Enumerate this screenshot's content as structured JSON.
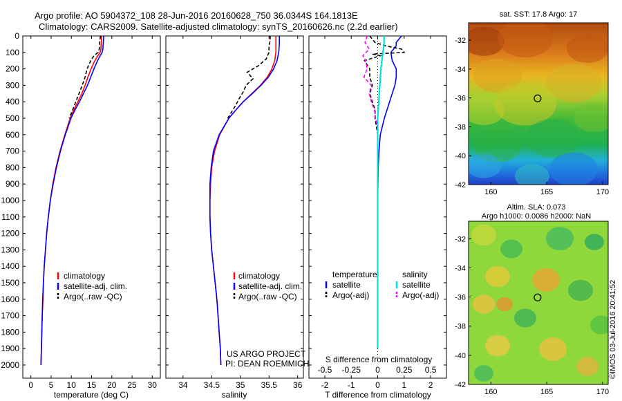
{
  "header": {
    "line1": "Argo profile: AO 5904372_108 28-Jun-2016 20160628_750 36.0344S 164.1813E",
    "line2": "Climatology: CARS2009. Satellite-adjusted climatology: synTS_20160626.nc (2.2d earlier)"
  },
  "colors": {
    "climatology": "#ff0000",
    "satellite": "#0000ff",
    "argo": "#000000",
    "salinity_satellite": "#00e0e0",
    "salinity_argo": "#ff00ff"
  },
  "depth_axis": {
    "ticks": [
      "0",
      "100",
      "200",
      "300",
      "400",
      "500",
      "600",
      "700",
      "800",
      "900",
      "1000",
      "1100",
      "1200",
      "1300",
      "1400",
      "1500",
      "1600",
      "1700",
      "1800",
      "1900",
      "2000"
    ],
    "ylim": [
      0,
      2080
    ]
  },
  "chart_data": [
    {
      "type": "line",
      "xlabel": "temperature (deg C)",
      "xlim": [
        -2,
        32
      ],
      "xticks": [
        "0",
        "5",
        "10",
        "15",
        "20",
        "25",
        "30"
      ],
      "xtick_values": [
        0,
        5,
        10,
        15,
        20,
        25,
        30
      ],
      "legend": [
        "climatology",
        "satellite-adj. clim.",
        "Argo(..raw -QC)"
      ],
      "depth": [
        0,
        40,
        80,
        100,
        130,
        160,
        200,
        250,
        300,
        350,
        400,
        450,
        500,
        600,
        700,
        800,
        900,
        1000,
        1100,
        1200,
        1300,
        1400,
        1500,
        1600,
        1700,
        1800,
        1900,
        2000
      ],
      "series": [
        {
          "name": "climatology",
          "color_key": "climatology",
          "values": [
            17.5,
            17.4,
            17.3,
            17.1,
            16.3,
            15.6,
            14.9,
            14.1,
            13.4,
            12.6,
            11.6,
            10.6,
            9.7,
            8.4,
            7.2,
            6.2,
            5.4,
            4.8,
            4.3,
            3.9,
            3.6,
            3.3,
            3.1,
            3.0,
            2.8,
            2.7,
            2.6,
            2.5
          ]
        },
        {
          "name": "satellite-adj. clim.",
          "color_key": "satellite",
          "values": [
            18.0,
            17.9,
            17.8,
            17.6,
            16.9,
            16.3,
            15.6,
            14.8,
            14.0,
            13.0,
            12.0,
            10.9,
            9.9,
            8.5,
            7.3,
            6.3,
            5.5,
            4.8,
            4.3,
            3.9,
            3.6,
            3.3,
            3.1,
            2.9,
            2.8,
            2.7,
            2.6,
            2.5
          ]
        },
        {
          "name": "Argo(..raw -QC)",
          "color_key": "argo",
          "depth": [
            0,
            20,
            40,
            60,
            80,
            100,
            120,
            150,
            200,
            250,
            300,
            350,
            400,
            450,
            500
          ],
          "values": [
            17.2,
            17.1,
            17.0,
            17.0,
            16.9,
            16.6,
            15.6,
            14.8,
            13.9,
            13.4,
            12.7,
            11.9,
            11.1,
            10.3,
            9.5
          ]
        }
      ]
    },
    {
      "type": "line",
      "xlabel": "salinity",
      "xlim": [
        33.7,
        36.1
      ],
      "xticks": [
        "34",
        "34.5",
        "35",
        "35.5",
        "36"
      ],
      "xtick_values": [
        34,
        34.5,
        35,
        35.5,
        36
      ],
      "legend": [
        "climatology",
        "satellite-adj. clim.",
        "Argo(..raw -QC)"
      ],
      "annotation": [
        "US ARGO PROJECT",
        "PI: DEAN ROEMMICH"
      ],
      "depth": [
        0,
        50,
        100,
        150,
        200,
        250,
        300,
        350,
        400,
        450,
        500,
        600,
        700,
        800,
        900,
        1000,
        1100,
        1200,
        1300,
        1400,
        1500,
        1600,
        1700,
        1800,
        1900,
        2000
      ],
      "series": [
        {
          "name": "climatology",
          "color_key": "climatology",
          "values": [
            35.62,
            35.62,
            35.62,
            35.6,
            35.55,
            35.47,
            35.35,
            35.2,
            35.05,
            34.92,
            34.8,
            34.64,
            34.55,
            34.5,
            34.48,
            34.47,
            34.47,
            34.48,
            34.5,
            34.53,
            34.56,
            34.59,
            34.61,
            34.63,
            34.65,
            34.66
          ]
        },
        {
          "name": "satellite-adj. clim.",
          "color_key": "satellite",
          "values": [
            35.68,
            35.68,
            35.67,
            35.64,
            35.58,
            35.49,
            35.36,
            35.21,
            35.05,
            34.92,
            34.8,
            34.63,
            34.53,
            34.49,
            34.47,
            34.47,
            34.47,
            34.48,
            34.5,
            34.53,
            34.56,
            34.59,
            34.61,
            34.63,
            34.65,
            34.66
          ]
        },
        {
          "name": "Argo(..raw -QC)",
          "color_key": "argo",
          "depth": [
            0,
            30,
            60,
            100,
            140,
            180,
            220,
            260,
            300,
            340,
            380,
            420,
            460,
            500
          ],
          "values": [
            35.52,
            35.52,
            35.5,
            35.5,
            35.45,
            35.32,
            35.12,
            35.22,
            35.1,
            35.05,
            34.98,
            34.92,
            34.85,
            34.78
          ]
        }
      ]
    },
    {
      "type": "line",
      "legend_titles": [
        "temperature",
        "salinity"
      ],
      "legend": [
        "satellite",
        "Argo(-adj)",
        "satellite",
        "Argo(-adj)"
      ],
      "xlabel_top": "S difference from climatology",
      "xlabel": "T difference from climatology",
      "xlim_T": [
        -2.6,
        2.6
      ],
      "xticks_T": [
        "-2",
        "-1",
        "0",
        "1",
        "2"
      ],
      "xtick_values_T": [
        -2,
        -1,
        0,
        1,
        2
      ],
      "xticks_S": [
        "-0.5",
        "-0.25",
        "0",
        "0.25",
        "0.5"
      ],
      "xtick_values_S": [
        -0.5,
        -0.25,
        0,
        0.25,
        0.5
      ],
      "series": [
        {
          "name": "temperature satellite",
          "color_key": "satellite",
          "axis": "T",
          "depth": [
            0,
            20,
            40,
            60,
            80,
            100,
            150,
            200,
            250,
            300,
            350,
            400,
            500,
            600,
            700,
            800,
            1000,
            1200,
            1400,
            1600,
            1800,
            1900
          ],
          "values": [
            0.9,
            0.8,
            0.7,
            0.7,
            0.6,
            0.5,
            0.55,
            0.7,
            0.7,
            0.65,
            0.55,
            0.45,
            0.25,
            0.1,
            0.05,
            0.02,
            0.0,
            0.0,
            0.0,
            0.0,
            0.0,
            0.0
          ]
        },
        {
          "name": "temperature Argo(-adj)",
          "color_key": "argo",
          "axis": "T",
          "depth": [
            0,
            20,
            40,
            60,
            80,
            100,
            110,
            120,
            150,
            200,
            250,
            300,
            350,
            400,
            450,
            500,
            600,
            700,
            800,
            1000,
            1200,
            1400,
            1600,
            1800,
            1900
          ],
          "values": [
            -0.3,
            -0.2,
            -0.1,
            0.3,
            0.9,
            1.0,
            -0.2,
            0.1,
            -0.5,
            -0.3,
            -0.3,
            -0.2,
            -0.3,
            -0.2,
            -0.1,
            -0.1,
            0.0,
            0.0,
            0.0,
            0.0,
            0.0,
            0.0,
            0.0,
            0.0,
            0.0
          ]
        },
        {
          "name": "salinity satellite",
          "color_key": "salinity_satellite",
          "axis": "S",
          "depth": [
            0,
            50,
            100,
            150,
            200,
            300,
            400,
            500,
            600,
            800,
            1000,
            1200,
            1400,
            1600,
            1800,
            1900
          ],
          "values": [
            0.06,
            0.06,
            0.05,
            0.04,
            0.03,
            0.02,
            0.01,
            0.0,
            0.0,
            0.0,
            0.0,
            0.0,
            0.0,
            0.0,
            0.0,
            0.0
          ]
        },
        {
          "name": "salinity Argo(-adj)",
          "color_key": "salinity_argo",
          "axis": "S",
          "depth": [
            0,
            40,
            80,
            120,
            160,
            200,
            250,
            300,
            350,
            400,
            450,
            500,
            550
          ],
          "values": [
            -0.1,
            -0.12,
            -0.08,
            -0.14,
            -0.11,
            -0.1,
            -0.13,
            -0.06,
            -0.08,
            -0.06,
            -0.03,
            -0.02,
            0.0
          ]
        }
      ]
    }
  ],
  "map_sst": {
    "title": "sat. SST: 17.8 Argo: 17",
    "yticks": [
      "-32",
      "-34",
      "-36",
      "-38",
      "-40",
      "-42"
    ],
    "ytick_values": [
      -32,
      -34,
      -36,
      -38,
      -40,
      -42
    ],
    "xticks": [
      "160",
      "165",
      "170"
    ],
    "xtick_values": [
      160,
      165,
      170
    ],
    "lon_range": [
      158,
      170.5
    ],
    "lat_range": [
      -42,
      -30.8
    ],
    "marker": {
      "lon": 164.18,
      "lat": -36.03
    }
  },
  "map_sla": {
    "title_line1": "Altim. SLA: 0.073",
    "title_line2": "Argo h1000: 0.0086 h2000: NaN",
    "yticks": [
      "-32",
      "-34",
      "-36",
      "-38",
      "-40",
      "-42"
    ],
    "ytick_values": [
      -32,
      -34,
      -36,
      -38,
      -40,
      -42
    ],
    "xticks": [
      "160",
      "165",
      "170"
    ],
    "xtick_values": [
      160,
      165,
      170
    ],
    "lon_range": [
      158,
      170.5
    ],
    "lat_range": [
      -42,
      -30.8
    ],
    "marker": {
      "lon": 164.18,
      "lat": -36.03
    }
  },
  "footer_stamp": "©IMOS 03-Jul-2016 20:41:52"
}
